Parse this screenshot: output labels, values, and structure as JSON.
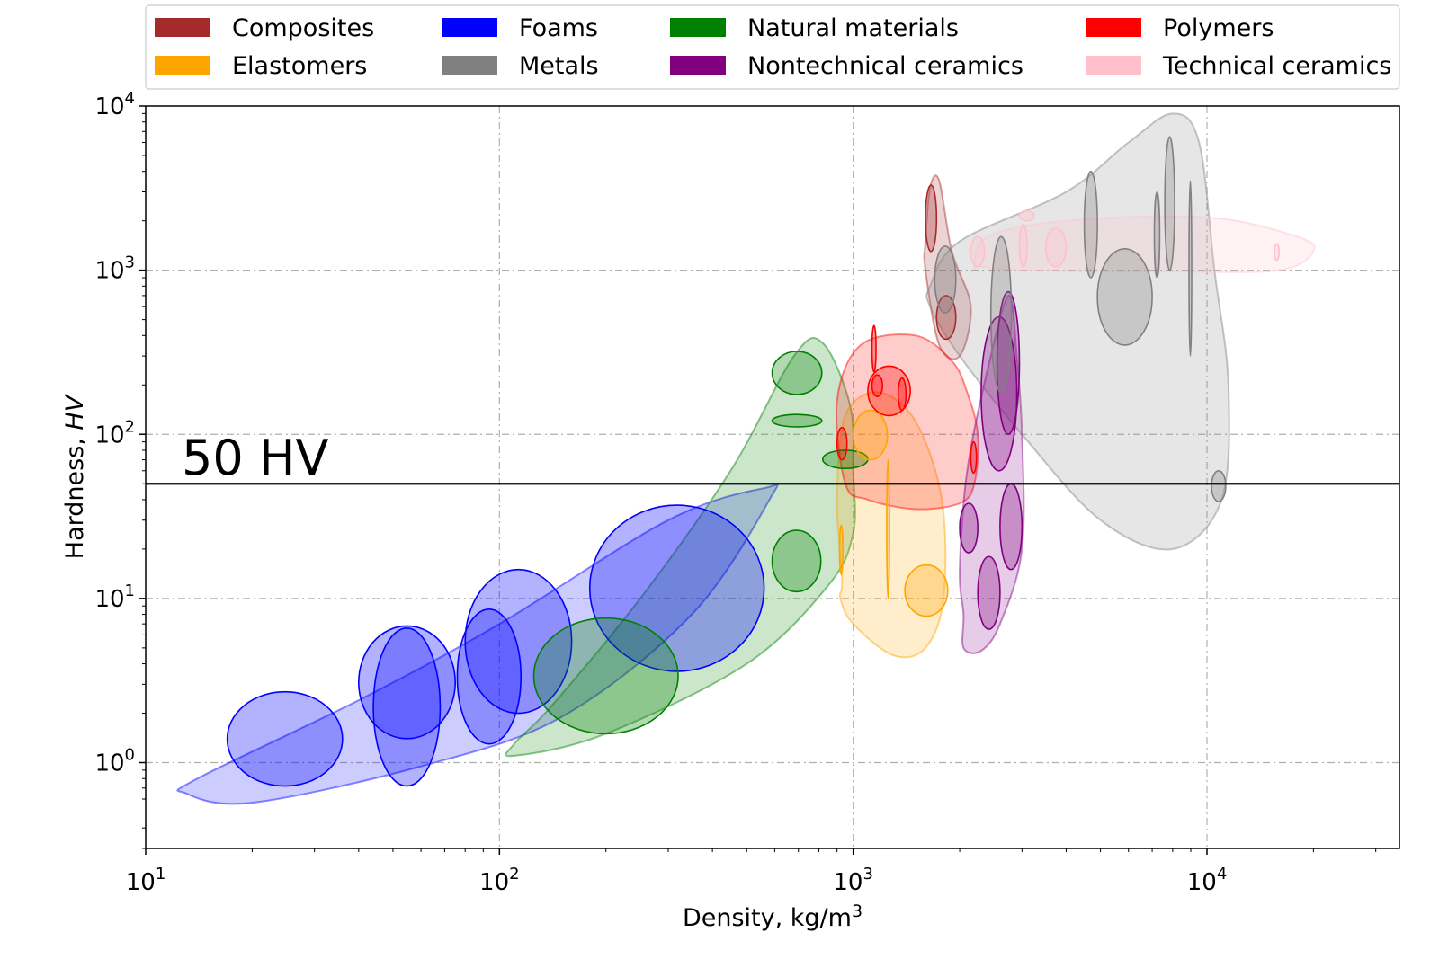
{
  "chart_data": {
    "type": "scatter",
    "subtype": "material property bubble chart",
    "title": "",
    "xlabel": "Density, kg/m",
    "xlabel_superscript": "3",
    "ylabel": "Hardness, ",
    "ylabel_italic": "HV",
    "x_scale": "log",
    "y_scale": "log",
    "xlim": [
      10,
      35000
    ],
    "ylim": [
      0.3,
      10000
    ],
    "grid": true,
    "x_ticks": [
      {
        "value": 10,
        "base": "10",
        "exp": "1"
      },
      {
        "value": 100,
        "base": "10",
        "exp": "2"
      },
      {
        "value": 1000,
        "base": "10",
        "exp": "3"
      },
      {
        "value": 10000,
        "base": "10",
        "exp": "4"
      }
    ],
    "y_ticks": [
      {
        "value": 1,
        "base": "10",
        "exp": "0"
      },
      {
        "value": 10,
        "base": "10",
        "exp": "1"
      },
      {
        "value": 100,
        "base": "10",
        "exp": "2"
      },
      {
        "value": 1000,
        "base": "10",
        "exp": "3"
      },
      {
        "value": 10000,
        "base": "10",
        "exp": "4"
      }
    ],
    "legend_position": "top",
    "legend": [
      {
        "name": "Composites",
        "color": "#a52a2a"
      },
      {
        "name": "Elastomers",
        "color": "#ffa500"
      },
      {
        "name": "Foams",
        "color": "#0000ff"
      },
      {
        "name": "Metals",
        "color": "#808080"
      },
      {
        "name": "Natural materials",
        "color": "#008000"
      },
      {
        "name": "Nontechnical ceramics",
        "color": "#800080"
      },
      {
        "name": "Polymers",
        "color": "#ff0000"
      },
      {
        "name": "Technical ceramics",
        "color": "#ffc0cb"
      }
    ],
    "reference_line": {
      "y": 50,
      "label": "50 HV"
    },
    "families": [
      {
        "name": "Foams",
        "color": "#0000ff",
        "envelope": [
          [
            13,
            0.65
          ],
          [
            20,
            0.57
          ],
          [
            60,
            0.95
          ],
          [
            150,
            1.9
          ],
          [
            350,
            8
          ],
          [
            580,
            40
          ],
          [
            560,
            47
          ],
          [
            300,
            30
          ],
          [
            100,
            7
          ],
          [
            40,
            2.4
          ],
          [
            14,
            0.8
          ]
        ],
        "regions": [
          {
            "x": [
              17,
              36
            ],
            "y": [
              0.72,
              2.7
            ]
          },
          {
            "x": [
              40,
              75
            ],
            "y": [
              1.4,
              6.8
            ]
          },
          {
            "x": [
              44,
              68
            ],
            "y": [
              0.72,
              6.6
            ]
          },
          {
            "x": [
              76,
              115
            ],
            "y": [
              1.3,
              8.6
            ]
          },
          {
            "x": [
              80,
              160
            ],
            "y": [
              2.0,
              15
            ]
          },
          {
            "x": [
              180,
              560
            ],
            "y": [
              3.6,
              37
            ]
          }
        ]
      },
      {
        "name": "Natural materials",
        "color": "#008000",
        "envelope": [
          [
            110,
            1.1
          ],
          [
            200,
            1.5
          ],
          [
            500,
            4
          ],
          [
            850,
            12
          ],
          [
            1000,
            25
          ],
          [
            1000,
            60
          ],
          [
            980,
            150
          ],
          [
            820,
            360
          ],
          [
            680,
            300
          ],
          [
            450,
            60
          ],
          [
            250,
            10
          ],
          [
            140,
            2.2
          ],
          [
            110,
            1.3
          ]
        ],
        "regions": [
          {
            "x": [
              125,
              320
            ],
            "y": [
              1.5,
              7.6
            ]
          },
          {
            "x": [
              590,
              810
            ],
            "y": [
              11,
              26
            ]
          },
          {
            "x": [
              590,
              815
            ],
            "y": [
              175,
              320
            ]
          },
          {
            "x": [
              590,
              815
            ],
            "y": [
              111,
              132
            ]
          },
          {
            "x": [
              820,
              1100
            ],
            "y": [
              62,
              80
            ]
          }
        ]
      },
      {
        "name": "Elastomers",
        "color": "#ffa500",
        "envelope": [
          [
            930,
            13
          ],
          [
            900,
            40
          ],
          [
            950,
            130
          ],
          [
            1180,
            180
          ],
          [
            1500,
            120
          ],
          [
            1780,
            40
          ],
          [
            1800,
            10
          ],
          [
            1600,
            5
          ],
          [
            1300,
            4.5
          ],
          [
            1000,
            7
          ],
          [
            920,
            10
          ]
        ],
        "regions": [
          {
            "x": [
              1000,
              1250
            ],
            "y": [
              70,
              140
            ]
          },
          {
            "x": [
              1400,
              1850
            ],
            "y": [
              7.8,
              16
            ]
          },
          {
            "x": [
              915,
              935
            ],
            "y": [
              14,
              28
            ]
          },
          {
            "x": [
              1245,
              1265
            ],
            "y": [
              10,
              70
            ]
          }
        ]
      },
      {
        "name": "Polymers",
        "color": "#ff0000",
        "envelope": [
          [
            950,
            50
          ],
          [
            900,
            160
          ],
          [
            1050,
            350
          ],
          [
            1500,
            400
          ],
          [
            1900,
            280
          ],
          [
            2100,
            180
          ],
          [
            2250,
            100
          ],
          [
            2200,
            50
          ],
          [
            2000,
            38
          ],
          [
            1500,
            35
          ],
          [
            1100,
            40
          ]
        ],
        "regions": [
          {
            "x": [
              1100,
              1450
            ],
            "y": [
              130,
              260
            ]
          },
          {
            "x": [
              1130,
              1210
            ],
            "y": [
              170,
              230
            ]
          },
          {
            "x": [
              1340,
              1410
            ],
            "y": [
              140,
              220
            ]
          },
          {
            "x": [
              2150,
              2230
            ],
            "y": [
              58,
              90
            ]
          },
          {
            "x": [
              1130,
              1160
            ],
            "y": [
              240,
              460
            ]
          },
          {
            "x": [
              900,
              960
            ],
            "y": [
              70,
              110
            ]
          }
        ]
      },
      {
        "name": "Composites",
        "color": "#a52a2a",
        "envelope": [
          [
            1600,
            1000
          ],
          [
            1750,
            350
          ],
          [
            2000,
            300
          ],
          [
            2150,
            600
          ],
          [
            1900,
            1300
          ],
          [
            1750,
            3500
          ],
          [
            1650,
            3200
          ],
          [
            1600,
            1500
          ]
        ],
        "regions": [
          {
            "x": [
              1600,
              1720
            ],
            "y": [
              1300,
              3300
            ]
          },
          {
            "x": [
              1720,
              1950
            ],
            "y": [
              380,
              700
            ]
          }
        ]
      },
      {
        "name": "Nontechnical ceramics",
        "color": "#800080",
        "envelope": [
          [
            2050,
            5
          ],
          [
            2300,
            4.8
          ],
          [
            2600,
            7
          ],
          [
            3000,
            20
          ],
          [
            3000,
            100
          ],
          [
            2900,
            300
          ],
          [
            2750,
            700
          ],
          [
            2400,
            250
          ],
          [
            2100,
            60
          ],
          [
            2000,
            15
          ],
          [
            2050,
            8
          ]
        ],
        "regions": [
          {
            "x": [
              2300,
              2900
            ],
            "y": [
              60,
              520
            ]
          },
          {
            "x": [
              2600,
              3000
            ],
            "y": [
              15,
              50
            ]
          },
          {
            "x": [
              2250,
              2600
            ],
            "y": [
              6.5,
              18
            ]
          },
          {
            "x": [
              2000,
              2250
            ],
            "y": [
              19,
              38
            ]
          },
          {
            "x": [
              2550,
              2950
            ],
            "y": [
              100,
              740
            ]
          }
        ]
      },
      {
        "name": "Metals",
        "color": "#808080",
        "envelope": [
          [
            1650,
            800
          ],
          [
            2000,
            1500
          ],
          [
            4000,
            3000
          ],
          [
            6000,
            6000
          ],
          [
            8000,
            9000
          ],
          [
            9500,
            6000
          ],
          [
            10500,
            1000
          ],
          [
            11500,
            200
          ],
          [
            11000,
            40
          ],
          [
            8000,
            20
          ],
          [
            5000,
            30
          ],
          [
            3000,
            100
          ],
          [
            2000,
            300
          ],
          [
            1650,
            600
          ]
        ],
        "regions": [
          {
            "x": [
              1700,
              1950
            ],
            "y": [
              550,
              1400
            ]
          },
          {
            "x": [
              2450,
              2800
            ],
            "y": [
              180,
              1600
            ]
          },
          {
            "x": [
              4500,
              4900
            ],
            "y": [
              900,
              4000
            ]
          },
          {
            "x": [
              4900,
              7000
            ],
            "y": [
              350,
              1350
            ]
          },
          {
            "x": [
              7100,
              7350
            ],
            "y": [
              900,
              3000
            ]
          },
          {
            "x": [
              7600,
              8100
            ],
            "y": [
              1000,
              6500
            ]
          },
          {
            "x": [
              8900,
              9050
            ],
            "y": [
              300,
              3500
            ]
          },
          {
            "x": [
              10300,
              11300
            ],
            "y": [
              39,
              60
            ]
          }
        ]
      },
      {
        "name": "Technical ceramics",
        "color": "#ffc0cb",
        "envelope": [
          [
            2200,
            1050
          ],
          [
            2400,
            1600
          ],
          [
            4000,
            2000
          ],
          [
            10000,
            2100
          ],
          [
            18000,
            1600
          ],
          [
            20000,
            1300
          ],
          [
            16000,
            1000
          ],
          [
            8000,
            980
          ],
          [
            3000,
            1000
          ],
          [
            2300,
            1050
          ]
        ],
        "regions": [
          {
            "x": [
              2150,
              2350
            ],
            "y": [
              1050,
              1600
            ]
          },
          {
            "x": [
              2950,
              3100
            ],
            "y": [
              1050,
              1900
            ]
          },
          {
            "x": [
              3500,
              4000
            ],
            "y": [
              1050,
              1800
            ]
          },
          {
            "x": [
              2950,
              3250
            ],
            "y": [
              2000,
              2300
            ]
          },
          {
            "x": [
              15500,
              16000
            ],
            "y": [
              1150,
              1450
            ]
          }
        ]
      }
    ]
  }
}
